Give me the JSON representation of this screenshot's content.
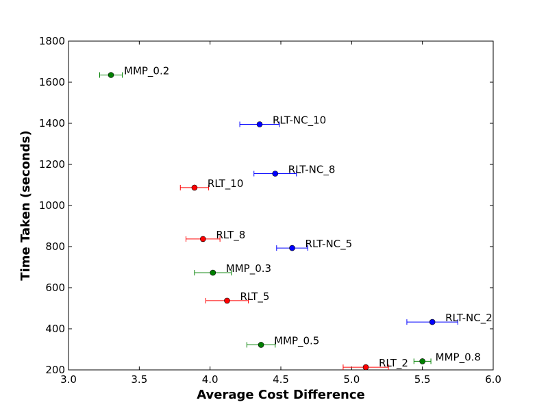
{
  "chart_data": {
    "type": "scatter",
    "title": "",
    "xlabel": "Average Cost Difference",
    "ylabel": "Time Taken (seconds)",
    "xlim": [
      3.0,
      6.0
    ],
    "ylim": [
      200,
      1800
    ],
    "xticks": [
      "3.0",
      "3.5",
      "4.0",
      "4.5",
      "5.0",
      "5.5",
      "6.0"
    ],
    "yticks": [
      "200",
      "400",
      "600",
      "800",
      "1000",
      "1200",
      "1400",
      "1600",
      "1800"
    ],
    "grid": false,
    "colors": {
      "MMP": "#008000",
      "RLT": "#ff0000",
      "RLT-NC": "#0000ff"
    },
    "points": [
      {
        "label": "MMP_0.2",
        "group": "MMP",
        "x": 3.3,
        "y": 1635,
        "xerr": 0.08
      },
      {
        "label": "RLT-NC_10",
        "group": "RLT-NC",
        "x": 4.35,
        "y": 1395,
        "xerr": 0.14
      },
      {
        "label": "RLT-NC_8",
        "group": "RLT-NC",
        "x": 4.46,
        "y": 1155,
        "xerr": 0.15
      },
      {
        "label": "RLT_10",
        "group": "RLT",
        "x": 3.89,
        "y": 1087,
        "xerr": 0.1
      },
      {
        "label": "RLT_8",
        "group": "RLT",
        "x": 3.95,
        "y": 837,
        "xerr": 0.12
      },
      {
        "label": "RLT-NC_5",
        "group": "RLT-NC",
        "x": 4.58,
        "y": 793,
        "xerr": 0.11
      },
      {
        "label": "MMP_0.3",
        "group": "MMP",
        "x": 4.02,
        "y": 673,
        "xerr": 0.13
      },
      {
        "label": "RLT_5",
        "group": "RLT",
        "x": 4.12,
        "y": 537,
        "xerr": 0.15
      },
      {
        "label": "RLT-NC_2",
        "group": "RLT-NC",
        "x": 5.57,
        "y": 433,
        "xerr": 0.18
      },
      {
        "label": "MMP_0.5",
        "group": "MMP",
        "x": 4.36,
        "y": 322,
        "xerr": 0.1
      },
      {
        "label": "MMP_0.8",
        "group": "MMP",
        "x": 5.5,
        "y": 242,
        "xerr": 0.06
      },
      {
        "label": "RLT_2",
        "group": "RLT",
        "x": 5.1,
        "y": 213,
        "xerr": 0.16
      }
    ]
  }
}
